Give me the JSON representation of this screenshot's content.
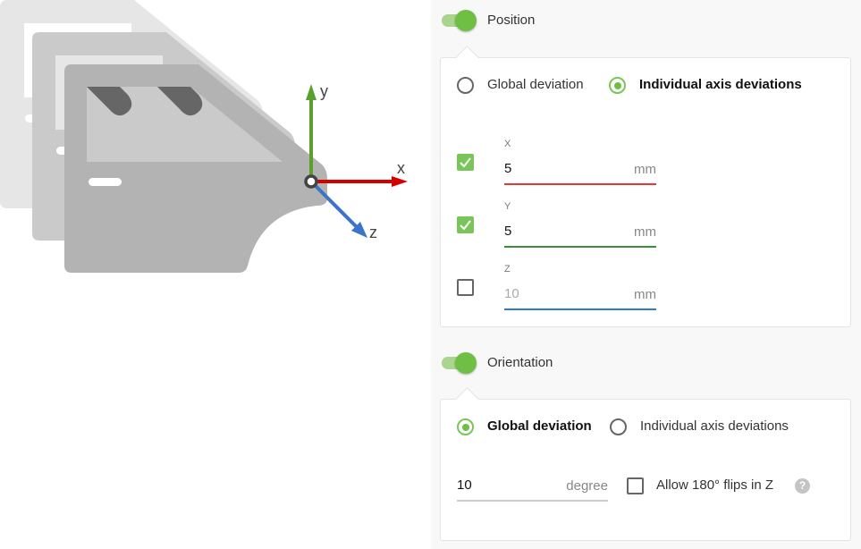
{
  "illustration": {
    "axis_labels": {
      "x": "x",
      "y": "y",
      "z": "z"
    },
    "colors": {
      "x": "#d40000",
      "y": "#5aa02c",
      "z": "#3a75c9"
    }
  },
  "position": {
    "toggle_label": "Position",
    "enabled": true,
    "modes": [
      {
        "label": "Global deviation",
        "selected": false
      },
      {
        "label": "Individual axis deviations",
        "selected": true
      }
    ],
    "fields": [
      {
        "axis": "X",
        "value": "5",
        "unit": "mm",
        "checked": true,
        "color": "#e53935"
      },
      {
        "axis": "Y",
        "value": "5",
        "unit": "mm",
        "checked": true,
        "color": "#3a8f3a"
      },
      {
        "axis": "Z",
        "value": "10",
        "unit": "mm",
        "checked": false,
        "color": "#2a7ad6"
      }
    ]
  },
  "orientation": {
    "toggle_label": "Orientation",
    "enabled": true,
    "modes": [
      {
        "label": "Global deviation",
        "selected": true
      },
      {
        "label": "Individual axis deviations",
        "selected": false
      }
    ],
    "value": "10",
    "unit": "degree",
    "flip_label": "Allow 180° flips in Z",
    "flip_checked": false,
    "help_icon": "?"
  },
  "accent": "#6fbf45"
}
